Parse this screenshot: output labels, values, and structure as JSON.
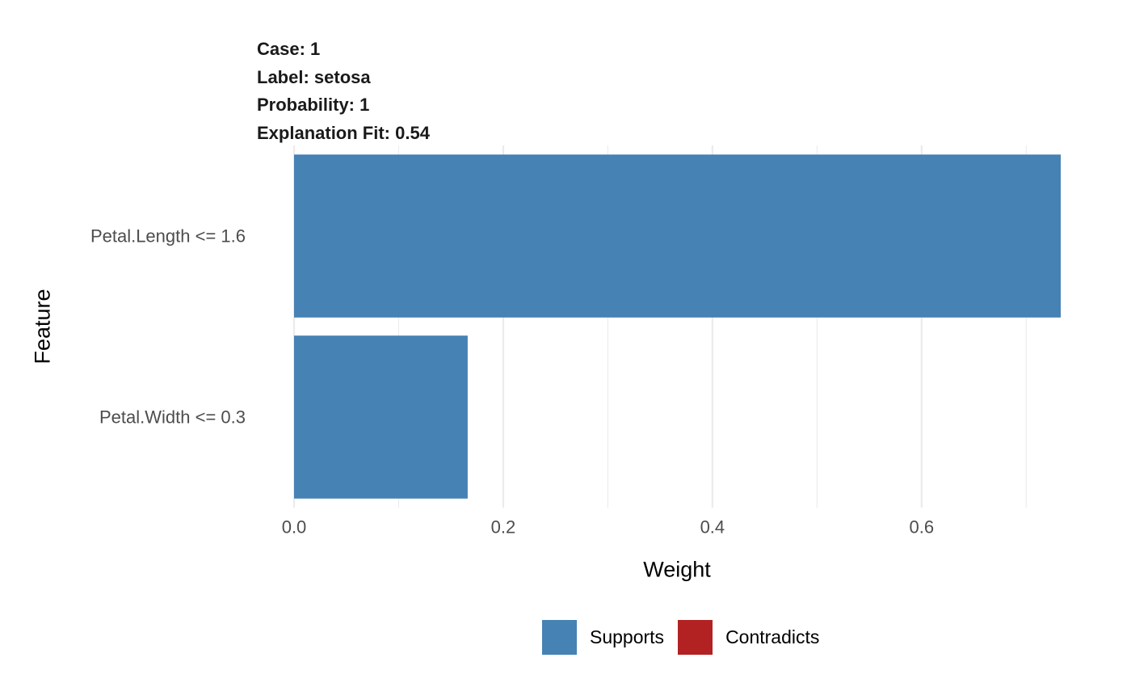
{
  "header": {
    "case": "Case: 1",
    "label": "Label: setosa",
    "probability": "Probability: 1",
    "fit": "Explanation Fit: 0.54"
  },
  "chart_data": {
    "type": "bar",
    "orientation": "horizontal",
    "categories": [
      "Petal.Length <= 1.6",
      "Petal.Width <= 0.3"
    ],
    "values": [
      0.733,
      0.166
    ],
    "fill": [
      "Supports",
      "Supports"
    ],
    "xlabel": "Weight",
    "ylabel": "Feature",
    "xlim": [
      0,
      0.733
    ],
    "xticks": [
      0.0,
      0.2,
      0.4,
      0.6
    ],
    "xtick_labels": [
      "0.0",
      "0.2",
      "0.4",
      "0.6"
    ],
    "grid": true,
    "legend_position": "bottom",
    "legend": [
      {
        "label": "Supports",
        "color": "#4682B4"
      },
      {
        "label": "Contradicts",
        "color": "#B22222"
      }
    ]
  }
}
